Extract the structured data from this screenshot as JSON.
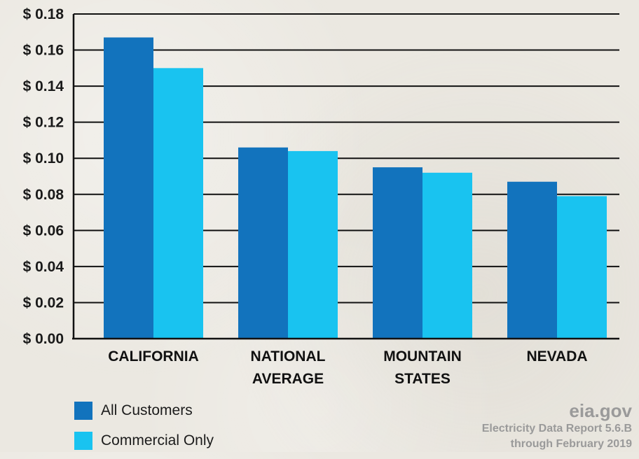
{
  "chart_data": {
    "type": "bar",
    "categories": [
      [
        "CALIFORNIA"
      ],
      [
        "NATIONAL",
        "AVERAGE"
      ],
      [
        "MOUNTAIN",
        "STATES"
      ],
      [
        "NEVADA"
      ]
    ],
    "series": [
      {
        "name": "All Customers",
        "color": "#1273bd",
        "values": [
          0.167,
          0.106,
          0.095,
          0.087
        ]
      },
      {
        "name": "Commercial Only",
        "color": "#19c3f0",
        "values": [
          0.15,
          0.104,
          0.092,
          0.079
        ]
      }
    ],
    "yticks": [
      "$ 0.00",
      "$ 0.02",
      "$ 0.04",
      "$ 0.06",
      "$ 0.08",
      "$ 0.10",
      "$ 0.12",
      "$ 0.14",
      "$ 0.16",
      "$ 0.18"
    ],
    "ylim": [
      0,
      0.18
    ],
    "grid": true,
    "legend_position": "bottom-left"
  },
  "source": {
    "site": "eia.gov",
    "report": "Electricity Data Report  5.6.B",
    "period": "through February 2019"
  }
}
